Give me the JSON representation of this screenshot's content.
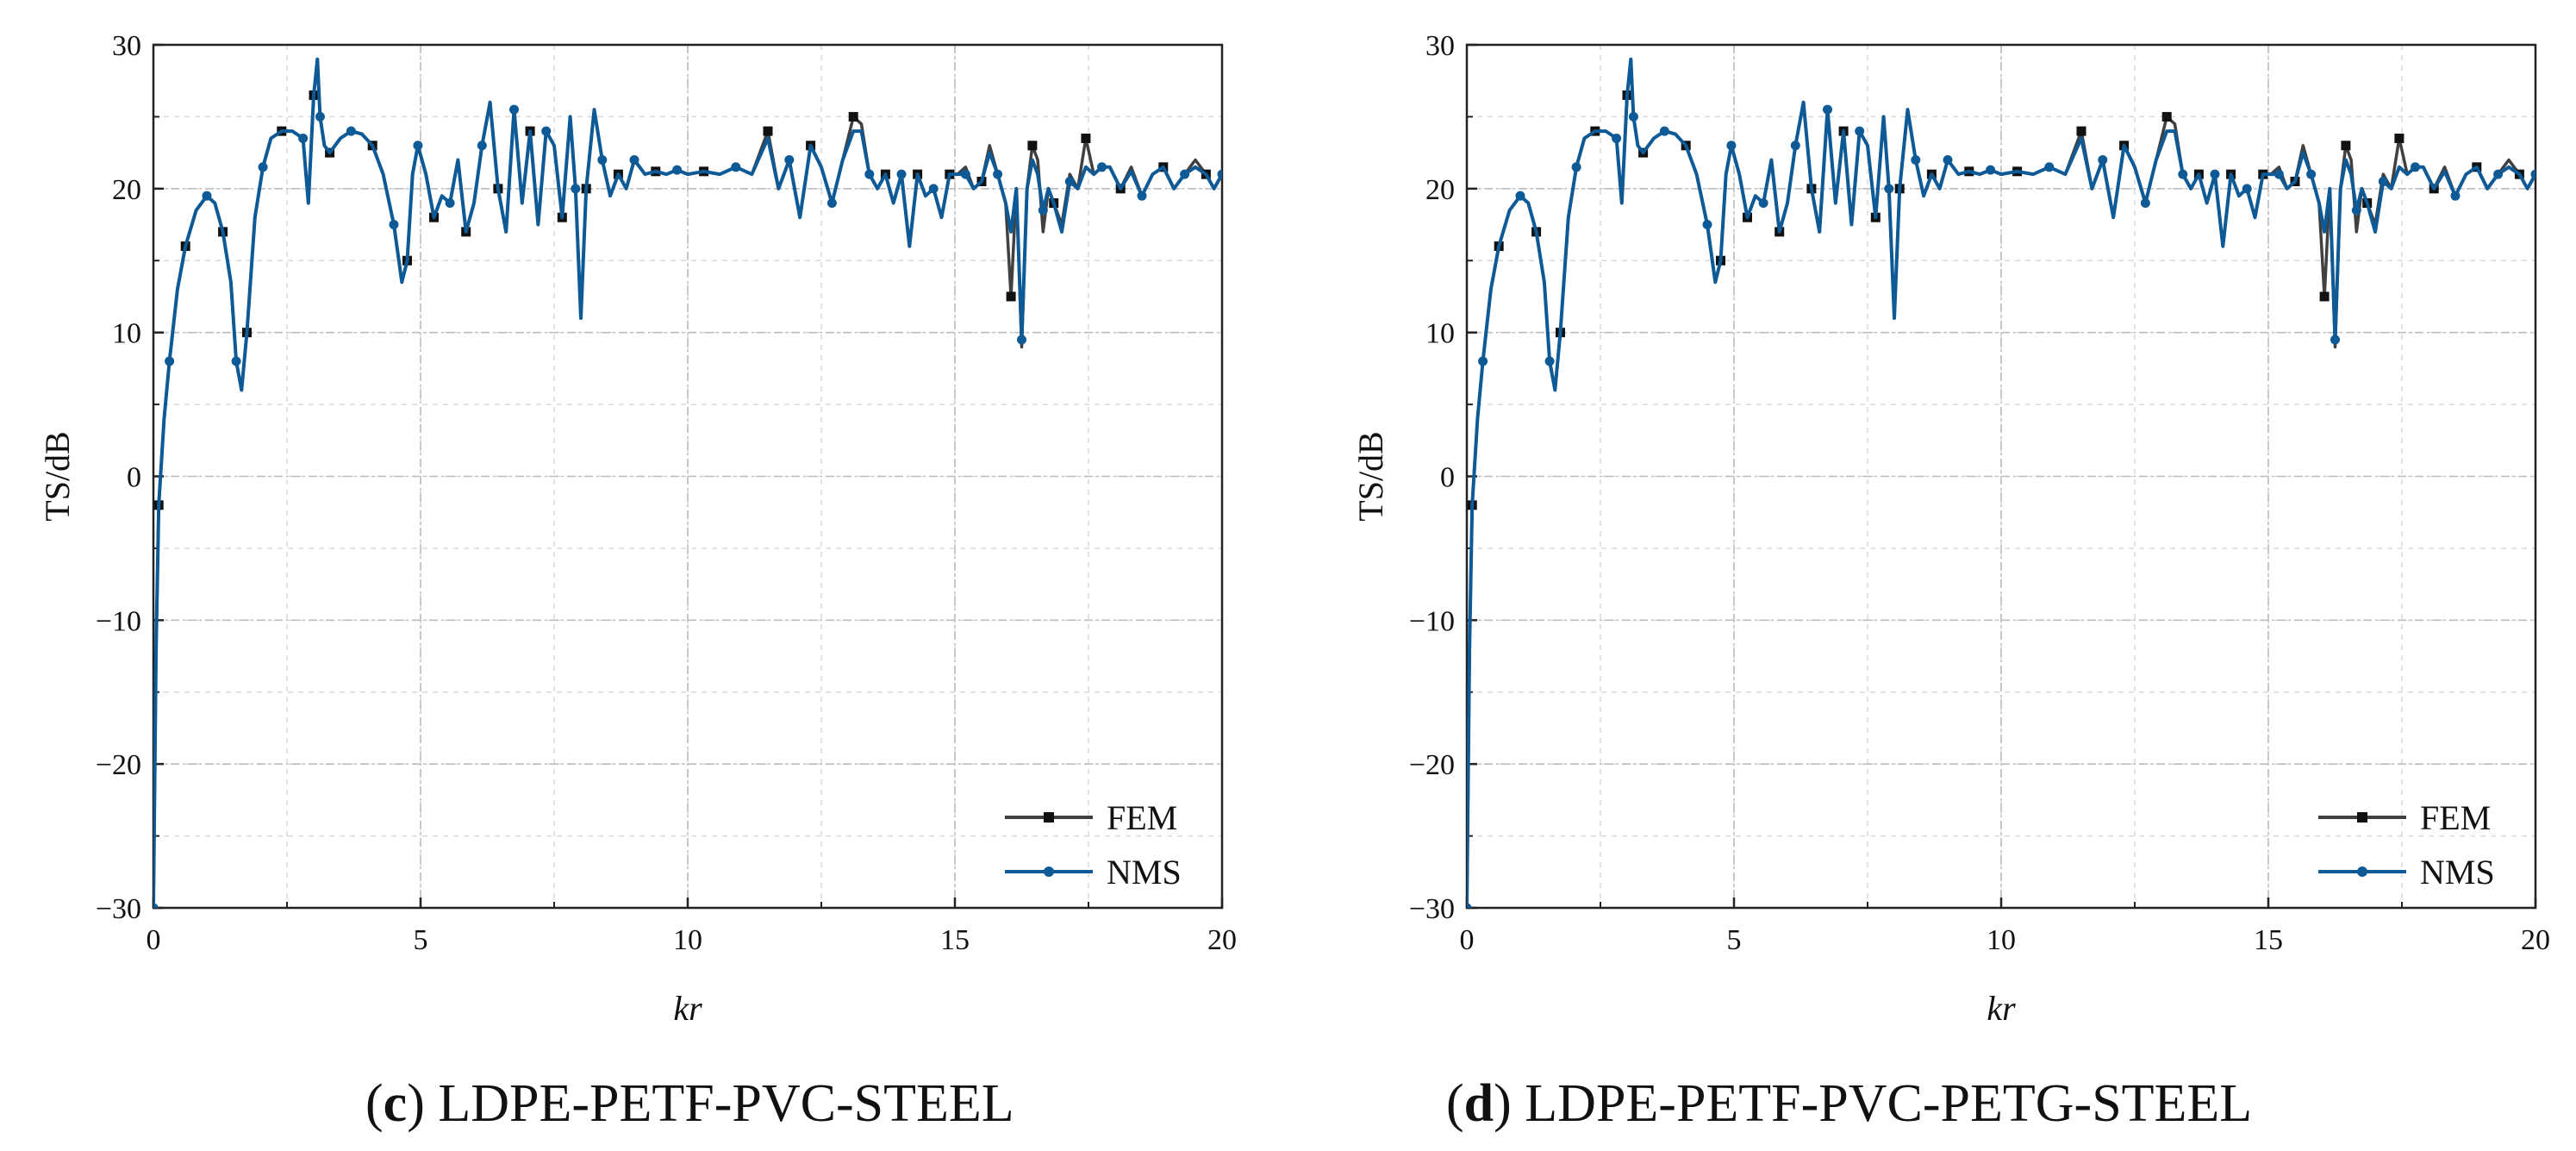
{
  "colors": {
    "fem": "#404040",
    "nms": "#0e5a96",
    "grid": "#bdbdbd",
    "axis": "#222222"
  },
  "chart_data": [
    {
      "type": "line",
      "caption_letter": "c",
      "caption_text": " LDPE-PETF-PVC-STEEL",
      "xlabel": "kr",
      "ylabel": "TS/dB",
      "xlim": [
        0,
        20
      ],
      "ylim": [
        -30,
        30
      ],
      "xticks": [
        0,
        5,
        10,
        15,
        20
      ],
      "yticks": [
        -30,
        -20,
        -10,
        0,
        10,
        20,
        30
      ],
      "grid": true,
      "legend": "bottom-right",
      "series": [
        {
          "name": "FEM",
          "marker": "square",
          "x": [
            0.0,
            0.05,
            0.1,
            0.2,
            0.3,
            0.45,
            0.6,
            0.8,
            1.0,
            1.15,
            1.3,
            1.45,
            1.55,
            1.65,
            1.75,
            1.9,
            2.05,
            2.2,
            2.4,
            2.6,
            2.8,
            2.9,
            3.0,
            3.07,
            3.12,
            3.2,
            3.3,
            3.5,
            3.7,
            3.9,
            4.1,
            4.3,
            4.5,
            4.65,
            4.75,
            4.85,
            4.95,
            5.1,
            5.25,
            5.4,
            5.55,
            5.7,
            5.85,
            6.0,
            6.15,
            6.3,
            6.45,
            6.6,
            6.75,
            6.9,
            7.05,
            7.2,
            7.35,
            7.5,
            7.65,
            7.8,
            7.9,
            8.0,
            8.1,
            8.25,
            8.4,
            8.55,
            8.7,
            8.85,
            9.0,
            9.2,
            9.4,
            9.6,
            9.8,
            10.0,
            10.3,
            10.6,
            10.9,
            11.2,
            11.5,
            11.7,
            11.9,
            12.1,
            12.3,
            12.5,
            12.7,
            12.9,
            13.1,
            13.25,
            13.4,
            13.55,
            13.7,
            13.85,
            14.0,
            14.15,
            14.3,
            14.45,
            14.6,
            14.75,
            14.9,
            15.05,
            15.2,
            15.35,
            15.5,
            15.65,
            15.8,
            15.95,
            16.05,
            16.15,
            16.25,
            16.35,
            16.45,
            16.55,
            16.65,
            16.75,
            16.85,
            17.0,
            17.15,
            17.3,
            17.45,
            17.6,
            17.75,
            17.9,
            18.1,
            18.3,
            18.5,
            18.7,
            18.9,
            19.1,
            19.3,
            19.5,
            19.7,
            19.85,
            20.0
          ],
          "y": [
            -30,
            -12,
            -2,
            4,
            8,
            13,
            16,
            18.5,
            19.5,
            19,
            17,
            13.5,
            8,
            6,
            10,
            18,
            21.5,
            23.5,
            24,
            24,
            23.5,
            19,
            26.5,
            29,
            25,
            23,
            22.5,
            23.5,
            24,
            23.8,
            23,
            21,
            17.5,
            13.5,
            15,
            21,
            23,
            21,
            18,
            19.5,
            19,
            22,
            17,
            19,
            23,
            26,
            20,
            17,
            25.5,
            19,
            24,
            17.5,
            24,
            23,
            18,
            25,
            20,
            11,
            20,
            25.5,
            22,
            19.5,
            21,
            20,
            22,
            21,
            21.2,
            21,
            21.3,
            21,
            21.2,
            21,
            21.5,
            21,
            24,
            20,
            22,
            18,
            23,
            21.5,
            19,
            22,
            25,
            24.5,
            21,
            20,
            21,
            19,
            21,
            16,
            21,
            19.5,
            20,
            18,
            21,
            21,
            21.5,
            20,
            20.5,
            23,
            21,
            19,
            12.5,
            20,
            9,
            20,
            23,
            22,
            17,
            20,
            19,
            17.5,
            21,
            20,
            23.5,
            21,
            21.5,
            21.5,
            20,
            21.5,
            19.5,
            21,
            21.5,
            20,
            21,
            22,
            21,
            20,
            21
          ]
        },
        {
          "name": "NMS",
          "marker": "circle",
          "x": [
            0.0,
            0.05,
            0.1,
            0.2,
            0.3,
            0.45,
            0.6,
            0.8,
            1.0,
            1.15,
            1.3,
            1.45,
            1.55,
            1.65,
            1.75,
            1.9,
            2.05,
            2.2,
            2.4,
            2.6,
            2.8,
            2.9,
            3.0,
            3.07,
            3.12,
            3.2,
            3.3,
            3.5,
            3.7,
            3.9,
            4.1,
            4.3,
            4.5,
            4.65,
            4.75,
            4.85,
            4.95,
            5.1,
            5.25,
            5.4,
            5.55,
            5.7,
            5.85,
            6.0,
            6.15,
            6.3,
            6.45,
            6.6,
            6.75,
            6.9,
            7.05,
            7.2,
            7.35,
            7.5,
            7.65,
            7.8,
            7.9,
            8.0,
            8.1,
            8.25,
            8.4,
            8.55,
            8.7,
            8.85,
            9.0,
            9.2,
            9.4,
            9.6,
            9.8,
            10.0,
            10.3,
            10.6,
            10.9,
            11.2,
            11.5,
            11.7,
            11.9,
            12.1,
            12.3,
            12.5,
            12.7,
            12.9,
            13.1,
            13.25,
            13.4,
            13.55,
            13.7,
            13.85,
            14.0,
            14.15,
            14.3,
            14.45,
            14.6,
            14.75,
            14.9,
            15.05,
            15.2,
            15.35,
            15.5,
            15.65,
            15.8,
            15.95,
            16.05,
            16.15,
            16.25,
            16.35,
            16.45,
            16.55,
            16.65,
            16.75,
            16.85,
            17.0,
            17.15,
            17.3,
            17.45,
            17.6,
            17.75,
            17.9,
            18.1,
            18.3,
            18.5,
            18.7,
            18.9,
            19.1,
            19.3,
            19.5,
            19.7,
            19.85,
            20.0
          ],
          "y": [
            -30,
            -12,
            -2,
            4,
            8,
            13,
            16,
            18.5,
            19.5,
            19,
            17,
            13.5,
            8,
            6,
            10,
            18,
            21.5,
            23.5,
            24,
            24,
            23.5,
            19,
            26.5,
            29,
            25,
            23,
            22.5,
            23.5,
            24,
            23.8,
            23,
            21,
            17.5,
            13.5,
            15,
            21,
            23,
            21,
            18,
            19.5,
            19,
            22,
            17,
            19,
            23,
            26,
            20,
            17,
            25.5,
            19,
            24,
            17.5,
            24,
            23,
            18,
            25,
            20,
            11,
            20,
            25.5,
            22,
            19.5,
            21,
            20,
            22,
            21,
            21.2,
            21,
            21.3,
            21,
            21.2,
            21,
            21.5,
            21,
            23.5,
            20,
            22,
            18,
            23,
            21.5,
            19,
            22,
            24,
            24,
            21,
            20,
            21,
            19,
            21,
            16,
            21,
            19.5,
            20,
            18,
            21,
            21,
            21,
            20,
            20.5,
            22.5,
            21,
            19,
            17,
            20,
            9.5,
            20,
            22,
            21,
            18.5,
            20,
            19,
            17,
            20.5,
            20,
            21.5,
            21,
            21.5,
            21.5,
            20,
            21.2,
            19.5,
            21,
            21.5,
            20,
            21,
            21.5,
            21,
            20,
            21
          ]
        }
      ]
    },
    {
      "type": "line",
      "caption_letter": "d",
      "caption_text": " LDPE-PETF-PVC-PETG-STEEL",
      "xlabel": "kr",
      "ylabel": "TS/dB",
      "xlim": [
        0,
        20
      ],
      "ylim": [
        -30,
        30
      ],
      "xticks": [
        0,
        5,
        10,
        15,
        20
      ],
      "yticks": [
        -30,
        -20,
        -10,
        0,
        10,
        20,
        30
      ],
      "grid": true,
      "legend": "bottom-right",
      "series": [
        {
          "name": "FEM",
          "marker": "square",
          "x": [
            0.0,
            0.05,
            0.1,
            0.2,
            0.3,
            0.45,
            0.6,
            0.8,
            1.0,
            1.15,
            1.3,
            1.45,
            1.55,
            1.65,
            1.75,
            1.9,
            2.05,
            2.2,
            2.4,
            2.6,
            2.8,
            2.9,
            3.0,
            3.07,
            3.12,
            3.2,
            3.3,
            3.5,
            3.7,
            3.9,
            4.1,
            4.3,
            4.5,
            4.65,
            4.75,
            4.85,
            4.95,
            5.1,
            5.25,
            5.4,
            5.55,
            5.7,
            5.85,
            6.0,
            6.15,
            6.3,
            6.45,
            6.6,
            6.75,
            6.9,
            7.05,
            7.2,
            7.35,
            7.5,
            7.65,
            7.8,
            7.9,
            8.0,
            8.1,
            8.25,
            8.4,
            8.55,
            8.7,
            8.85,
            9.0,
            9.2,
            9.4,
            9.6,
            9.8,
            10.0,
            10.3,
            10.6,
            10.9,
            11.2,
            11.5,
            11.7,
            11.9,
            12.1,
            12.3,
            12.5,
            12.7,
            12.9,
            13.1,
            13.25,
            13.4,
            13.55,
            13.7,
            13.85,
            14.0,
            14.15,
            14.3,
            14.45,
            14.6,
            14.75,
            14.9,
            15.05,
            15.2,
            15.35,
            15.5,
            15.65,
            15.8,
            15.95,
            16.05,
            16.15,
            16.25,
            16.35,
            16.45,
            16.55,
            16.65,
            16.75,
            16.85,
            17.0,
            17.15,
            17.3,
            17.45,
            17.6,
            17.75,
            17.9,
            18.1,
            18.3,
            18.5,
            18.7,
            18.9,
            19.1,
            19.3,
            19.5,
            19.7,
            19.85,
            20.0
          ],
          "y": [
            -30,
            -12,
            -2,
            4,
            8,
            13,
            16,
            18.5,
            19.5,
            19,
            17,
            13.5,
            8,
            6,
            10,
            18,
            21.5,
            23.5,
            24,
            24,
            23.5,
            19,
            26.5,
            29,
            25,
            23,
            22.5,
            23.5,
            24,
            23.8,
            23,
            21,
            17.5,
            13.5,
            15,
            21,
            23,
            21,
            18,
            19.5,
            19,
            22,
            17,
            19,
            23,
            26,
            20,
            17,
            25.5,
            19,
            24,
            17.5,
            24,
            23,
            18,
            25,
            20,
            11,
            20,
            25.5,
            22,
            19.5,
            21,
            20,
            22,
            21,
            21.2,
            21,
            21.3,
            21,
            21.2,
            21,
            21.5,
            21,
            24,
            20,
            22,
            18,
            23,
            21.5,
            19,
            22,
            25,
            24.5,
            21,
            20,
            21,
            19,
            21,
            16,
            21,
            19.5,
            20,
            18,
            21,
            21,
            21.5,
            20,
            20.5,
            23,
            21,
            19,
            12.5,
            20,
            9,
            20,
            23,
            22,
            17,
            20,
            19,
            17.5,
            21,
            20,
            23.5,
            21,
            21.5,
            21.5,
            20,
            21.5,
            19.5,
            21,
            21.5,
            20,
            21,
            22,
            21,
            20,
            21
          ]
        },
        {
          "name": "NMS",
          "marker": "circle",
          "x": [
            0.0,
            0.05,
            0.1,
            0.2,
            0.3,
            0.45,
            0.6,
            0.8,
            1.0,
            1.15,
            1.3,
            1.45,
            1.55,
            1.65,
            1.75,
            1.9,
            2.05,
            2.2,
            2.4,
            2.6,
            2.8,
            2.9,
            3.0,
            3.07,
            3.12,
            3.2,
            3.3,
            3.5,
            3.7,
            3.9,
            4.1,
            4.3,
            4.5,
            4.65,
            4.75,
            4.85,
            4.95,
            5.1,
            5.25,
            5.4,
            5.55,
            5.7,
            5.85,
            6.0,
            6.15,
            6.3,
            6.45,
            6.6,
            6.75,
            6.9,
            7.05,
            7.2,
            7.35,
            7.5,
            7.65,
            7.8,
            7.9,
            8.0,
            8.1,
            8.25,
            8.4,
            8.55,
            8.7,
            8.85,
            9.0,
            9.2,
            9.4,
            9.6,
            9.8,
            10.0,
            10.3,
            10.6,
            10.9,
            11.2,
            11.5,
            11.7,
            11.9,
            12.1,
            12.3,
            12.5,
            12.7,
            12.9,
            13.1,
            13.25,
            13.4,
            13.55,
            13.7,
            13.85,
            14.0,
            14.15,
            14.3,
            14.45,
            14.6,
            14.75,
            14.9,
            15.05,
            15.2,
            15.35,
            15.5,
            15.65,
            15.8,
            15.95,
            16.05,
            16.15,
            16.25,
            16.35,
            16.45,
            16.55,
            16.65,
            16.75,
            16.85,
            17.0,
            17.15,
            17.3,
            17.45,
            17.6,
            17.75,
            17.9,
            18.1,
            18.3,
            18.5,
            18.7,
            18.9,
            19.1,
            19.3,
            19.5,
            19.7,
            19.85,
            20.0
          ],
          "y": [
            -30,
            -12,
            -2,
            4,
            8,
            13,
            16,
            18.5,
            19.5,
            19,
            17,
            13.5,
            8,
            6,
            10,
            18,
            21.5,
            23.5,
            24,
            24,
            23.5,
            19,
            26.5,
            29,
            25,
            23,
            22.5,
            23.5,
            24,
            23.8,
            23,
            21,
            17.5,
            13.5,
            15,
            21,
            23,
            21,
            18,
            19.5,
            19,
            22,
            17,
            19,
            23,
            26,
            20,
            17,
            25.5,
            19,
            24,
            17.5,
            24,
            23,
            18,
            25,
            20,
            11,
            20,
            25.5,
            22,
            19.5,
            21,
            20,
            22,
            21,
            21.2,
            21,
            21.3,
            21,
            21.2,
            21,
            21.5,
            21,
            23.5,
            20,
            22,
            18,
            23,
            21.5,
            19,
            22,
            24,
            24,
            21,
            20,
            21,
            19,
            21,
            16,
            21,
            19.5,
            20,
            18,
            21,
            21,
            21,
            20,
            20.5,
            22.5,
            21,
            19,
            17,
            20,
            9.5,
            20,
            22,
            21,
            18.5,
            20,
            19,
            17,
            20.5,
            20,
            21.5,
            21,
            21.5,
            21.5,
            20,
            21.2,
            19.5,
            21,
            21.5,
            20,
            21,
            21.5,
            21,
            20,
            21
          ]
        }
      ]
    }
  ]
}
